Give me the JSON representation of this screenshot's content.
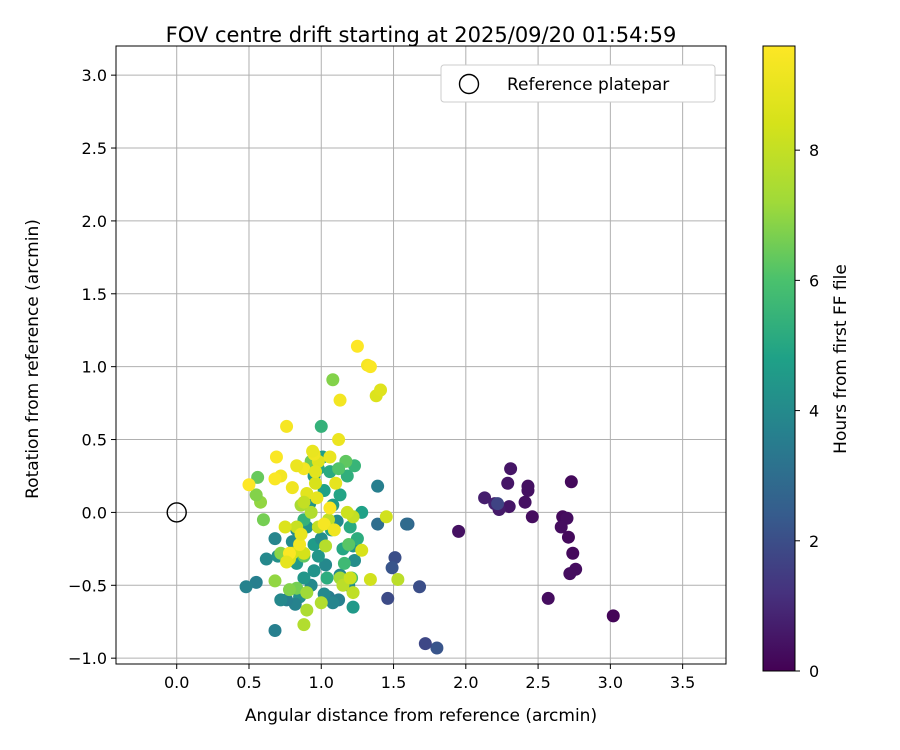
{
  "chart_data": {
    "type": "scatter",
    "title": "FOV centre drift starting at 2025/09/20 01:54:59",
    "xlabel": "Angular distance from reference (arcmin)",
    "ylabel": "Rotation from reference (arcmin)",
    "xlim": [
      -0.42,
      3.8
    ],
    "ylim": [
      -1.04,
      3.2
    ],
    "xticks": [
      "0.0",
      "0.5",
      "1.0",
      "1.5",
      "2.0",
      "2.5",
      "3.0",
      "3.5"
    ],
    "xtick_values": [
      0,
      0.5,
      1.0,
      1.5,
      2.0,
      2.5,
      3.0,
      3.5
    ],
    "yticks": [
      "−1.0",
      "−0.5",
      "0.0",
      "0.5",
      "1.0",
      "1.5",
      "2.0",
      "2.5",
      "3.0"
    ],
    "ytick_values": [
      -1.0,
      -0.5,
      0,
      0.5,
      1.0,
      1.5,
      2.0,
      2.5,
      3.0
    ],
    "grid": true,
    "legend": {
      "placement": "top-right",
      "entries": [
        "Reference platepar"
      ]
    },
    "reference_point": {
      "x": 0.0,
      "y": 0.0
    },
    "colorbar": {
      "label": "Hours from first FF file",
      "min": 0,
      "max": 9.6,
      "ticks": [
        "0",
        "2",
        "4",
        "6",
        "8"
      ],
      "tick_values": [
        0,
        2,
        4,
        6,
        8
      ],
      "colormap": "viridis"
    },
    "series": [
      {
        "values": [
          [
            3.02,
            -0.71,
            0.1
          ],
          [
            2.73,
            0.21,
            0.2
          ],
          [
            2.76,
            -0.39,
            0.3
          ],
          [
            2.72,
            -0.42,
            0.3
          ],
          [
            2.74,
            -0.28,
            0.2
          ],
          [
            2.71,
            -0.17,
            0.2
          ],
          [
            2.67,
            -0.03,
            0.2
          ],
          [
            2.7,
            -0.04,
            0.3
          ],
          [
            2.66,
            -0.1,
            0.3
          ],
          [
            2.57,
            -0.59,
            0.3
          ],
          [
            2.46,
            -0.03,
            0.3
          ],
          [
            2.43,
            0.15,
            0.4
          ],
          [
            2.43,
            0.18,
            0.4
          ],
          [
            2.41,
            0.07,
            0.4
          ],
          [
            2.31,
            0.3,
            0.5
          ],
          [
            2.3,
            0.04,
            0.5
          ],
          [
            2.29,
            0.2,
            0.5
          ],
          [
            2.23,
            0.02,
            0.6
          ],
          [
            2.2,
            0.06,
            0.8
          ],
          [
            2.13,
            0.1,
            0.7
          ],
          [
            1.95,
            -0.13,
            0.4
          ],
          [
            2.22,
            0.06,
            1.7
          ],
          [
            1.8,
            -0.93,
            2.2
          ],
          [
            1.72,
            -0.9,
            1.8
          ],
          [
            1.68,
            -0.51,
            2.0
          ],
          [
            1.51,
            -0.31,
            2.0
          ],
          [
            1.49,
            -0.38,
            2.2
          ],
          [
            1.46,
            -0.59,
            1.9
          ],
          [
            1.6,
            -0.08,
            2.7
          ],
          [
            1.59,
            -0.08,
            2.9
          ],
          [
            1.39,
            -0.08,
            3.0
          ],
          [
            1.39,
            0.18,
            3.6
          ],
          [
            1.22,
            -0.65,
            4.5
          ],
          [
            1.23,
            -0.33,
            4.1
          ],
          [
            1.22,
            -0.23,
            4.3
          ],
          [
            1.19,
            -0.5,
            4.0
          ],
          [
            1.13,
            -0.43,
            3.9
          ],
          [
            1.12,
            -0.6,
            3.6
          ],
          [
            1.05,
            -0.58,
            3.5
          ],
          [
            1.02,
            -0.56,
            4.0
          ],
          [
            1.08,
            -0.62,
            3.8
          ],
          [
            1.03,
            -0.36,
            3.9
          ],
          [
            0.98,
            -0.3,
            4.4
          ],
          [
            0.95,
            -0.4,
            4.3
          ],
          [
            0.93,
            -0.5,
            3.9
          ],
          [
            0.88,
            -0.45,
            4.4
          ],
          [
            0.85,
            -0.58,
            4.2
          ],
          [
            0.82,
            -0.63,
            3.7
          ],
          [
            0.76,
            -0.6,
            3.6
          ],
          [
            0.72,
            -0.6,
            3.9
          ],
          [
            0.68,
            -0.81,
            3.6
          ],
          [
            0.55,
            -0.48,
            3.6
          ],
          [
            0.48,
            -0.51,
            3.7
          ],
          [
            0.62,
            -0.32,
            3.9
          ],
          [
            0.68,
            -0.18,
            3.8
          ],
          [
            0.7,
            -0.3,
            4.2
          ],
          [
            0.8,
            -0.2,
            4.0
          ],
          [
            0.83,
            -0.35,
            4.5
          ],
          [
            0.9,
            -0.1,
            4.3
          ],
          [
            0.95,
            -0.22,
            4.6
          ],
          [
            1.0,
            -0.18,
            4.1
          ],
          [
            1.07,
            -0.12,
            4.7
          ],
          [
            1.11,
            -0.06,
            4.0
          ],
          [
            1.15,
            -0.25,
            5.0
          ],
          [
            1.2,
            -0.1,
            5.1
          ],
          [
            1.25,
            -0.18,
            5.2
          ],
          [
            1.28,
            0.0,
            4.8
          ],
          [
            1.18,
            0.25,
            5.3
          ],
          [
            1.23,
            0.32,
            5.5
          ],
          [
            1.06,
            0.28,
            5.1
          ],
          [
            1.02,
            0.15,
            4.8
          ],
          [
            0.98,
            0.3,
            5.0
          ],
          [
            1.01,
            0.38,
            4.7
          ],
          [
            1.0,
            0.59,
            5.4
          ],
          [
            0.95,
            0.25,
            4.5
          ],
          [
            1.08,
            0.05,
            4.6
          ],
          [
            1.13,
            0.12,
            4.9
          ],
          [
            0.92,
            0.06,
            4.3
          ],
          [
            0.88,
            -0.05,
            5.4
          ],
          [
            0.83,
            -0.12,
            4.0
          ],
          [
            1.04,
            -0.45,
            5.2
          ],
          [
            1.16,
            -0.35,
            5.7
          ],
          [
            1.21,
            -0.45,
            6.0
          ],
          [
            1.19,
            -0.22,
            6.2
          ],
          [
            1.17,
            0.35,
            6.3
          ],
          [
            1.12,
            0.3,
            6.1
          ],
          [
            1.08,
            0.91,
            6.8
          ],
          [
            0.93,
            0.35,
            6.5
          ],
          [
            0.88,
            -0.3,
            6.3
          ],
          [
            0.83,
            -0.52,
            6.6
          ],
          [
            0.78,
            -0.53,
            6.8
          ],
          [
            0.72,
            -0.28,
            6.9
          ],
          [
            0.68,
            -0.47,
            7.0
          ],
          [
            0.6,
            -0.05,
            6.6
          ],
          [
            0.58,
            0.07,
            7.0
          ],
          [
            0.55,
            0.12,
            6.8
          ],
          [
            0.56,
            0.24,
            6.4
          ],
          [
            0.9,
            -0.55,
            7.2
          ],
          [
            0.9,
            -0.67,
            7.5
          ],
          [
            0.88,
            -0.77,
            7.6
          ],
          [
            1.0,
            -0.62,
            7.6
          ],
          [
            1.13,
            -0.45,
            7.3
          ],
          [
            1.15,
            -0.5,
            7.8
          ],
          [
            1.22,
            -0.55,
            7.9
          ],
          [
            1.2,
            -0.45,
            8.2
          ],
          [
            1.34,
            -0.46,
            8.3
          ],
          [
            1.28,
            -0.26,
            8.5
          ],
          [
            1.53,
            -0.46,
            7.8
          ],
          [
            1.45,
            -0.03,
            8.3
          ],
          [
            1.22,
            -0.03,
            8.0
          ],
          [
            1.18,
            0.0,
            8.2
          ],
          [
            1.05,
            -0.05,
            7.9
          ],
          [
            1.03,
            -0.23,
            7.7
          ],
          [
            0.98,
            -0.1,
            8.0
          ],
          [
            0.93,
            0.0,
            7.6
          ],
          [
            0.86,
            0.05,
            7.4
          ],
          [
            0.83,
            -0.1,
            8.1
          ],
          [
            0.8,
            -0.28,
            8.4
          ],
          [
            0.78,
            -0.32,
            8.6
          ],
          [
            0.75,
            -0.1,
            8.6
          ],
          [
            0.88,
            -0.28,
            8.4
          ],
          [
            0.9,
            0.13,
            8.8
          ],
          [
            0.96,
            0.2,
            8.5
          ],
          [
            0.98,
            0.35,
            8.7
          ],
          [
            1.06,
            0.38,
            9.0
          ],
          [
            1.1,
            0.2,
            8.9
          ],
          [
            1.38,
            0.8,
            8.6
          ],
          [
            1.41,
            0.84,
            8.7
          ],
          [
            1.32,
            1.01,
            9.4
          ],
          [
            1.34,
            1.0,
            9.5
          ],
          [
            1.25,
            1.14,
            9.6
          ],
          [
            1.13,
            0.77,
            9.3
          ],
          [
            1.12,
            0.5,
            9.1
          ],
          [
            0.95,
            0.4,
            9.2
          ],
          [
            0.88,
            0.3,
            9.3
          ],
          [
            0.83,
            0.32,
            9.1
          ],
          [
            0.8,
            0.17,
            9.2
          ],
          [
            0.76,
            0.59,
            9.4
          ],
          [
            0.72,
            0.25,
            9.3
          ],
          [
            0.69,
            0.38,
            9.5
          ],
          [
            0.68,
            0.23,
            9.5
          ],
          [
            0.5,
            0.19,
            9.6
          ],
          [
            0.94,
            0.42,
            9.0
          ],
          [
            0.96,
            0.28,
            8.8
          ],
          [
            0.97,
            0.1,
            8.9
          ],
          [
            1.02,
            -0.08,
            9.4
          ],
          [
            1.06,
            0.03,
            9.5
          ],
          [
            1.09,
            -0.12,
            9.2
          ],
          [
            0.85,
            -0.22,
            9.3
          ],
          [
            0.86,
            -0.15,
            9.0
          ],
          [
            0.78,
            -0.28,
            9.5
          ],
          [
            0.76,
            -0.34,
            8.9
          ],
          [
            0.88,
            0.07,
            8.0
          ]
        ]
      }
    ]
  }
}
